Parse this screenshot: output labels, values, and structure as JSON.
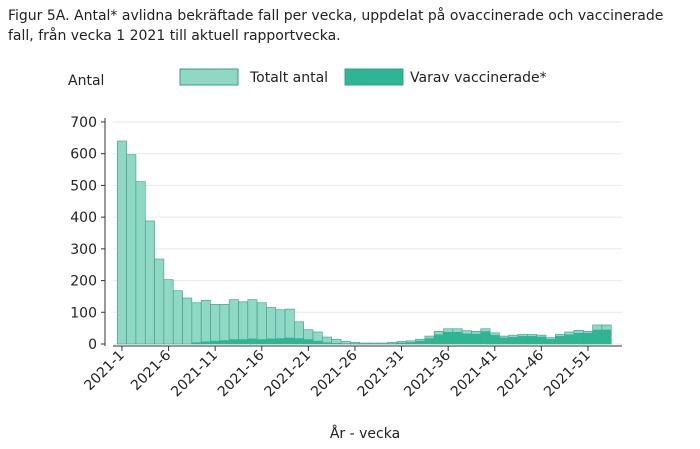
{
  "chart_data": {
    "type": "overlap-bar",
    "title": "Figur 5A. Antal* avlidna bekräftade fall per vecka, uppdelat på ovaccinerade och vaccinerade",
    "subtitle": "fall, från vecka 1 2021 till aktuell rapportvecka.",
    "y_label": "Antal",
    "x_label": "År - vecka",
    "categories": [
      "2021-1",
      null,
      null,
      null,
      null,
      "2021-6",
      null,
      null,
      null,
      null,
      "2021-11",
      null,
      null,
      null,
      null,
      "2021-16",
      null,
      null,
      null,
      null,
      "2021-21",
      null,
      null,
      null,
      null,
      "2021-26",
      null,
      null,
      null,
      null,
      "2021-31",
      null,
      null,
      null,
      null,
      "2021-36",
      null,
      null,
      null,
      null,
      "2021-41",
      null,
      null,
      null,
      null,
      "2021-46",
      null,
      null,
      null,
      null,
      "2021-51",
      null,
      null
    ],
    "series": [
      {
        "name": "Totalt antal",
        "color": "#8fd8c4",
        "values": [
          640,
          597,
          512,
          388,
          268,
          203,
          168,
          145,
          130,
          138,
          125,
          125,
          140,
          133,
          140,
          130,
          115,
          108,
          110,
          70,
          45,
          38,
          22,
          15,
          8,
          5,
          3,
          3,
          3,
          5,
          8,
          10,
          15,
          25,
          40,
          48,
          48,
          42,
          40,
          48,
          35,
          25,
          28,
          30,
          30,
          28,
          20,
          30,
          38,
          43,
          40,
          60,
          60
        ]
      },
      {
        "name": "Varav vaccinerade*",
        "color": "#2fb494",
        "values": [
          0,
          0,
          0,
          0,
          0,
          0,
          0,
          0,
          5,
          8,
          10,
          12,
          15,
          15,
          17,
          15,
          17,
          18,
          20,
          18,
          15,
          10,
          5,
          3,
          2,
          2,
          1,
          1,
          1,
          2,
          4,
          6,
          10,
          18,
          30,
          38,
          38,
          33,
          32,
          40,
          28,
          20,
          22,
          25,
          25,
          23,
          16,
          25,
          30,
          35,
          35,
          45,
          45
        ]
      }
    ],
    "ylim": [
      0,
      700
    ],
    "yticks": [
      0,
      100,
      200,
      300,
      400,
      500,
      600,
      700
    ],
    "grid": true
  }
}
